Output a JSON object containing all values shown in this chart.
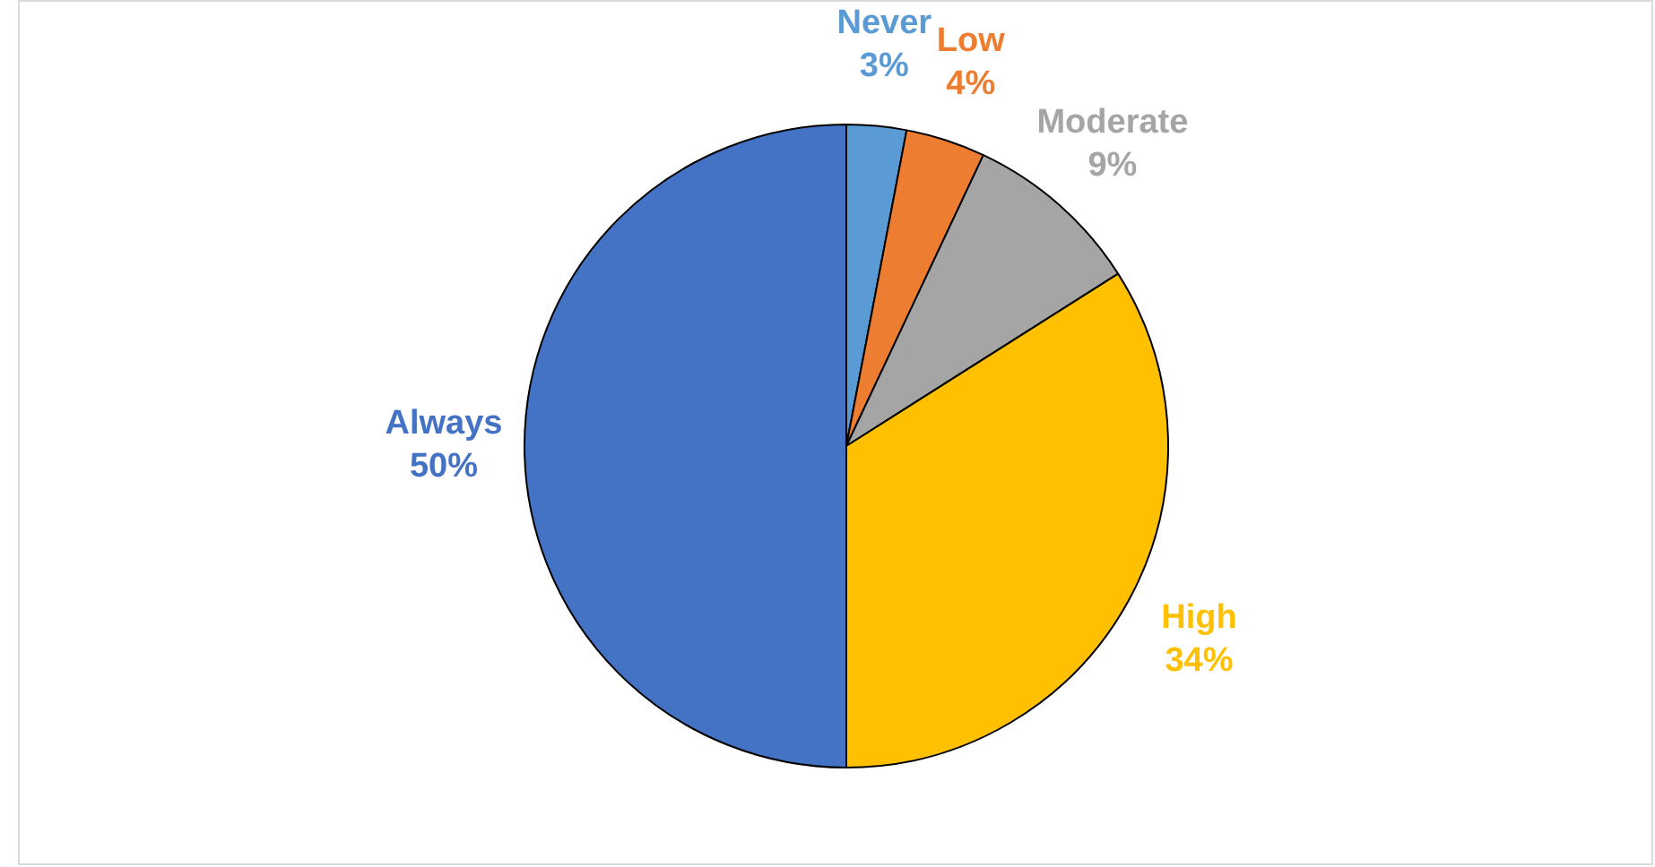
{
  "chart_data": {
    "type": "pie",
    "categories": [
      "Never",
      "Low",
      "Moderate",
      "High",
      "Always"
    ],
    "values": [
      3,
      4,
      9,
      34,
      50
    ],
    "colors": [
      "#5b9bd5",
      "#ed7d31",
      "#a5a5a5",
      "#ffc000",
      "#4472c4"
    ],
    "data_labels": true,
    "value_labels": [
      "3%",
      "4%",
      "9%",
      "34%",
      "50%"
    ],
    "legend": false
  }
}
